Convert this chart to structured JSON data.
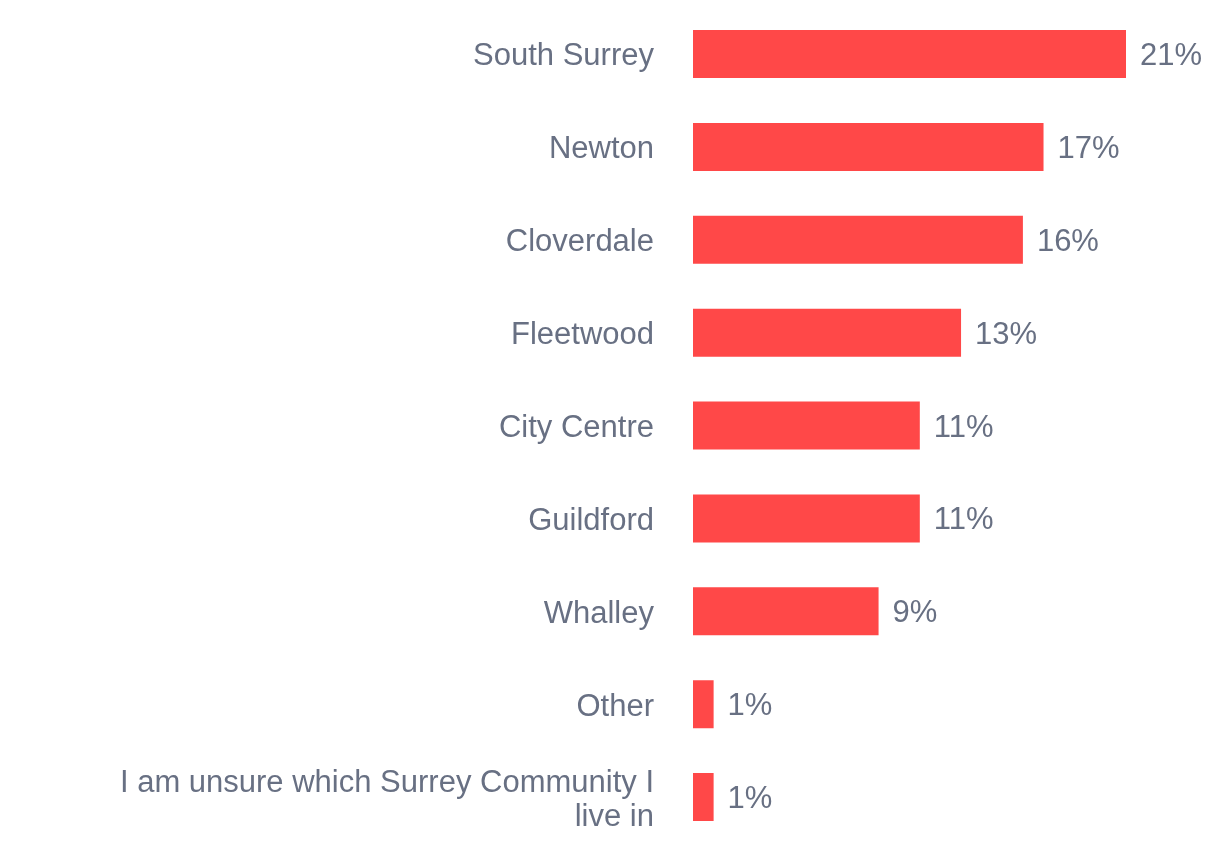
{
  "chart_data": {
    "type": "bar",
    "orientation": "horizontal",
    "categories": [
      "South Surrey",
      "Newton",
      "Cloverdale",
      "Fleetwood",
      "City Centre",
      "Guildford",
      "Whalley",
      "Other",
      "I am unsure which Surrey Community I live in"
    ],
    "values": [
      21,
      17,
      16,
      13,
      11,
      11,
      9,
      1,
      1
    ],
    "value_labels": [
      "21%",
      "17%",
      "16%",
      "13%",
      "11%",
      "11%",
      "9%",
      "1%",
      "1%"
    ],
    "color": "#ff4848",
    "grid": false,
    "legend": false
  }
}
